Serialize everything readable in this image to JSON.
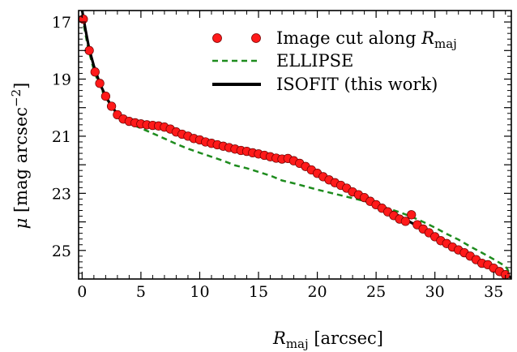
{
  "chart_data": {
    "type": "scatter",
    "xlabel_main": "R",
    "xlabel_sub": "maj",
    "xlabel_units": " [arcsec]",
    "ylabel_main": "μ",
    "ylabel_units": " [mag arcsec",
    "ylabel_sup": "−2",
    "ylabel_close": "]",
    "xlim": [
      -0.3,
      36.5
    ],
    "ylim": [
      26.0,
      16.6
    ],
    "y_inverted": true,
    "x_ticks": [
      0,
      5,
      10,
      15,
      20,
      25,
      30,
      35
    ],
    "x_tick_labels": [
      "0",
      "5",
      "10",
      "15",
      "20",
      "25",
      "30",
      "35"
    ],
    "y_major_ticks": [
      17,
      19,
      21,
      23,
      25
    ],
    "y_tick_labels": [
      "17",
      "19",
      "21",
      "23",
      "25"
    ],
    "grid": false,
    "legend_position": "top-right",
    "legend": {
      "cut_prefix": "Image cut along ",
      "cut_R": "R",
      "cut_sub": "maj",
      "ellipse_label": "ELLIPSE",
      "isofit_label": "ISOFIT",
      "isofit_suffix": " (this work)"
    },
    "series": [
      {
        "name": "Image cut along R_maj",
        "kind": "points",
        "color": "#ff1a1a",
        "x": [
          0.1,
          0.6,
          1.1,
          1.5,
          2.0,
          2.5,
          3.0,
          3.5,
          4.0,
          4.5,
          5.0,
          5.5,
          6.0,
          6.5,
          7.0,
          7.5,
          8.0,
          8.5,
          9.0,
          9.5,
          10.0,
          10.5,
          11.0,
          11.5,
          12.0,
          12.5,
          13.0,
          13.5,
          14.0,
          14.5,
          15.0,
          15.5,
          16.0,
          16.5,
          17.0,
          17.5,
          18.0,
          18.5,
          19.0,
          19.5,
          20.0,
          20.5,
          21.0,
          21.5,
          22.0,
          22.5,
          23.0,
          23.5,
          24.0,
          24.5,
          25.0,
          25.5,
          26.0,
          26.5,
          27.0,
          27.5,
          28.0,
          28.5,
          29.0,
          29.5,
          30.0,
          30.5,
          31.0,
          31.5,
          32.0,
          32.5,
          33.0,
          33.5,
          34.0,
          34.5,
          35.0,
          35.5,
          36.0
        ],
        "y": [
          16.9,
          18.0,
          18.75,
          19.15,
          19.6,
          19.95,
          20.25,
          20.4,
          20.48,
          20.53,
          20.57,
          20.6,
          20.62,
          20.64,
          20.68,
          20.75,
          20.85,
          20.93,
          21.0,
          21.08,
          21.13,
          21.2,
          21.25,
          21.3,
          21.35,
          21.4,
          21.45,
          21.5,
          21.53,
          21.58,
          21.62,
          21.67,
          21.72,
          21.77,
          21.8,
          21.78,
          21.86,
          21.95,
          22.06,
          22.18,
          22.3,
          22.42,
          22.53,
          22.63,
          22.72,
          22.82,
          22.95,
          23.05,
          23.15,
          23.28,
          23.4,
          23.52,
          23.65,
          23.78,
          23.9,
          23.98,
          23.75,
          24.1,
          24.25,
          24.38,
          24.52,
          24.66,
          24.76,
          24.88,
          24.98,
          25.08,
          25.2,
          25.32,
          25.45,
          25.5,
          25.62,
          25.74,
          25.85
        ]
      },
      {
        "name": "ELLIPSE",
        "kind": "dashed-line",
        "color": "#1e8c1e",
        "x": [
          0.0,
          0.5,
          1.0,
          1.5,
          2.0,
          2.5,
          3.0,
          3.5,
          4.0,
          5.0,
          6.0,
          7.0,
          8.0,
          9.0,
          10.0,
          11.0,
          12.0,
          13.0,
          14.0,
          15.0,
          16.0,
          17.0,
          18.0,
          19.0,
          20.0,
          21.0,
          22.0,
          23.0,
          24.0,
          25.0,
          26.0,
          27.0,
          28.0,
          29.0,
          30.0,
          31.0,
          32.0,
          33.0,
          34.0,
          35.0,
          36.0,
          36.3
        ],
        "y": [
          16.8,
          17.9,
          18.7,
          19.25,
          19.65,
          19.95,
          20.2,
          20.4,
          20.55,
          20.72,
          20.9,
          21.08,
          21.27,
          21.44,
          21.58,
          21.72,
          21.86,
          22.02,
          22.12,
          22.25,
          22.38,
          22.55,
          22.65,
          22.76,
          22.87,
          22.97,
          23.07,
          23.17,
          23.27,
          23.39,
          23.53,
          23.66,
          23.82,
          24.0,
          24.2,
          24.42,
          24.62,
          24.86,
          25.08,
          25.31,
          25.55,
          25.75
        ]
      },
      {
        "name": "ISOFIT (this work)",
        "kind": "line",
        "color": "#000000",
        "x": [
          0.0,
          0.3,
          0.6,
          1.0,
          1.5,
          2.0,
          2.5,
          3.0,
          3.5,
          4.0,
          5.0,
          6.0,
          7.0,
          8.0,
          9.0,
          10.0,
          11.0,
          12.0,
          13.0,
          14.0,
          15.0,
          16.0,
          17.0,
          18.0,
          19.0,
          20.0,
          21.0,
          22.0,
          23.0,
          24.0,
          25.0,
          26.0,
          27.0,
          28.0,
          29.0,
          30.0,
          31.0,
          32.0,
          33.0,
          34.0,
          35.0,
          36.0,
          36.5
        ],
        "y": [
          16.6,
          17.3,
          17.95,
          18.55,
          19.15,
          19.6,
          19.95,
          20.22,
          20.38,
          20.47,
          20.56,
          20.61,
          20.67,
          20.8,
          20.97,
          21.1,
          21.22,
          21.32,
          21.42,
          21.5,
          21.58,
          21.67,
          21.75,
          21.85,
          22.04,
          22.27,
          22.48,
          22.68,
          22.88,
          23.1,
          23.33,
          23.57,
          23.8,
          24.03,
          24.25,
          24.5,
          24.75,
          24.97,
          25.2,
          25.42,
          25.62,
          25.85,
          25.95
        ]
      }
    ]
  }
}
